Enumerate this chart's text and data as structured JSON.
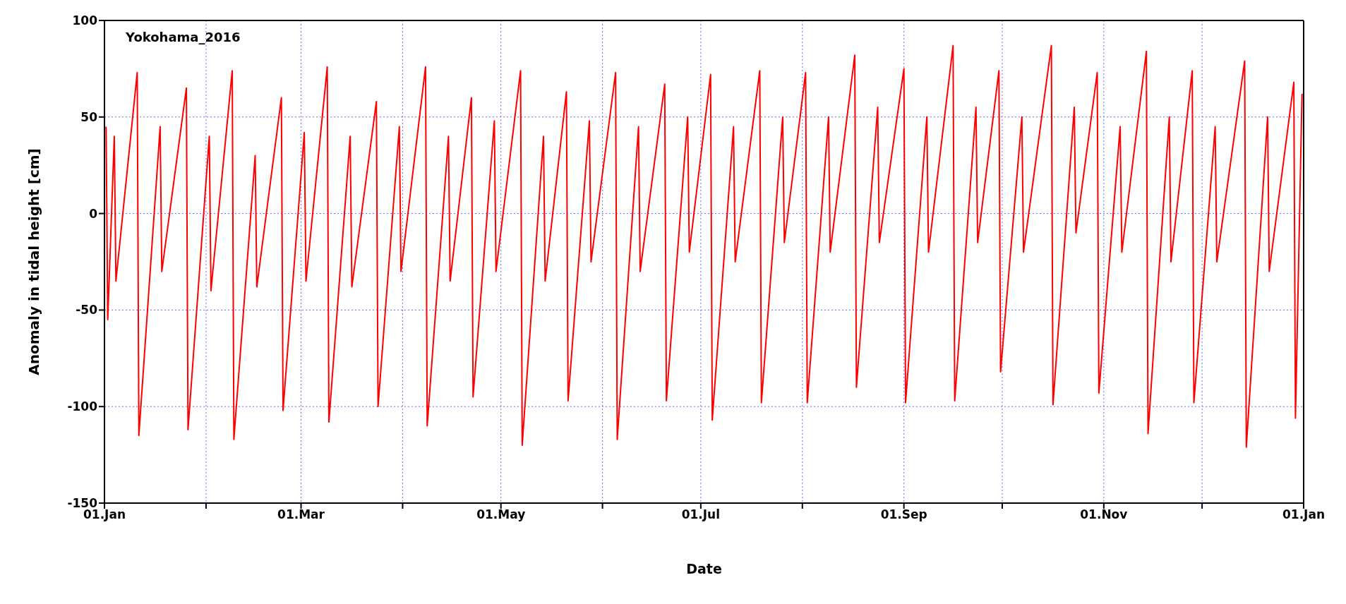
{
  "chart_data": {
    "type": "line",
    "title": "Yokohama_2016",
    "xlabel": "Date",
    "ylabel": "Anomaly in tidal height [cm]",
    "x": [
      "2016-01-01T12:00",
      "2016-01-02T00:00",
      "2016-01-04T00:00",
      "2016-01-04T12:00",
      "2016-01-11T00:00",
      "2016-01-11T12:00",
      "2016-01-18T00:00",
      "2016-01-18T12:00",
      "2016-01-26T00:00",
      "2016-01-26T12:00",
      "2016-02-02T00:00",
      "2016-02-02T12:00",
      "2016-02-09T00:00",
      "2016-02-09T12:00",
      "2016-02-16T00:00",
      "2016-02-16T12:00",
      "2016-02-24T00:00",
      "2016-02-24T12:00",
      "2016-03-02T00:00",
      "2016-03-02T12:00",
      "2016-03-09T00:00",
      "2016-03-09T12:00",
      "2016-03-16T00:00",
      "2016-03-16T12:00",
      "2016-03-24T00:00",
      "2016-03-24T12:00",
      "2016-03-31T00:00",
      "2016-03-31T12:00",
      "2016-04-08T00:00",
      "2016-04-08T12:00",
      "2016-04-15T00:00",
      "2016-04-15T12:00",
      "2016-04-22T00:00",
      "2016-04-22T12:00",
      "2016-04-29T00:00",
      "2016-04-29T12:00",
      "2016-05-07T00:00",
      "2016-05-07T12:00",
      "2016-05-14T00:00",
      "2016-05-14T12:00",
      "2016-05-21T00:00",
      "2016-05-21T12:00",
      "2016-05-28T00:00",
      "2016-05-28T12:00",
      "2016-06-05T00:00",
      "2016-06-05T12:00",
      "2016-06-12T00:00",
      "2016-06-12T12:00",
      "2016-06-20T00:00",
      "2016-06-20T12:00",
      "2016-06-27T00:00",
      "2016-06-27T12:00",
      "2016-07-04T00:00",
      "2016-07-04T12:00",
      "2016-07-11T00:00",
      "2016-07-11T12:00",
      "2016-07-19T00:00",
      "2016-07-19T12:00",
      "2016-07-26T00:00",
      "2016-07-26T12:00",
      "2016-08-02T00:00",
      "2016-08-02T12:00",
      "2016-08-09T00:00",
      "2016-08-09T12:00",
      "2016-08-17T00:00",
      "2016-08-17T12:00",
      "2016-08-24T00:00",
      "2016-08-24T12:00",
      "2016-09-01T00:00",
      "2016-09-01T12:00",
      "2016-09-08T00:00",
      "2016-09-08T12:00",
      "2016-09-16T00:00",
      "2016-09-16T12:00",
      "2016-09-23T00:00",
      "2016-09-23T12:00",
      "2016-09-30T00:00",
      "2016-09-30T12:00",
      "2016-10-07T00:00",
      "2016-10-07T12:00",
      "2016-10-16T00:00",
      "2016-10-16T12:00",
      "2016-10-23T00:00",
      "2016-10-23T12:00",
      "2016-10-30T00:00",
      "2016-10-30T12:00",
      "2016-11-06T00:00",
      "2016-11-06T12:00",
      "2016-11-14T00:00",
      "2016-11-14T12:00",
      "2016-11-21T00:00",
      "2016-11-21T12:00",
      "2016-11-28T00:00",
      "2016-11-28T12:00",
      "2016-12-05T00:00",
      "2016-12-05T12:00",
      "2016-12-14T00:00",
      "2016-12-14T12:00",
      "2016-12-21T00:00",
      "2016-12-21T12:00",
      "2016-12-29T00:00",
      "2016-12-29T12:00",
      "2016-12-31T12:00"
    ],
    "series": [
      {
        "color": "#ff0000",
        "values": [
          45,
          -55,
          40,
          -35,
          73,
          -115,
          45,
          -30,
          65,
          -112,
          40,
          -40,
          74,
          -117,
          30,
          -38,
          60,
          -102,
          42,
          -35,
          76,
          -108,
          40,
          -38,
          58,
          -100,
          45,
          -30,
          76,
          -110,
          40,
          -35,
          60,
          -95,
          48,
          -30,
          74,
          -120,
          40,
          -35,
          63,
          -97,
          48,
          -25,
          73,
          -117,
          45,
          -30,
          67,
          -97,
          50,
          -20,
          72,
          -107,
          45,
          -25,
          74,
          -98,
          50,
          -15,
          73,
          -98,
          50,
          -20,
          82,
          -90,
          55,
          -15,
          75,
          -98,
          50,
          -20,
          87,
          -97,
          55,
          -15,
          74,
          -82,
          50,
          -20,
          87,
          -99,
          55,
          -10,
          73,
          -93,
          45,
          -20,
          84,
          -114,
          50,
          -25,
          74,
          -98,
          45,
          -25,
          79,
          -121,
          50,
          -30,
          68,
          -106,
          62
        ]
      }
    ],
    "xlim": [
      "2016-01-01",
      "2017-01-01"
    ],
    "xticks": [
      {
        "value": "2016-01-01",
        "label": "01.Jan"
      },
      {
        "value": "2016-02-01",
        "label": null
      },
      {
        "value": "2016-03-01",
        "label": "01.Mar"
      },
      {
        "value": "2016-04-01",
        "label": null
      },
      {
        "value": "2016-05-01",
        "label": "01.May"
      },
      {
        "value": "2016-06-01",
        "label": null
      },
      {
        "value": "2016-07-01",
        "label": "01.Jul"
      },
      {
        "value": "2016-08-01",
        "label": null
      },
      {
        "value": "2016-09-01",
        "label": "01.Sep"
      },
      {
        "value": "2016-10-01",
        "label": null
      },
      {
        "value": "2016-11-01",
        "label": "01.Nov"
      },
      {
        "value": "2016-12-01",
        "label": null
      },
      {
        "value": "2017-01-01",
        "label": "01.Jan"
      }
    ],
    "ylim": [
      -150,
      100
    ],
    "yticks": [
      -150,
      -100,
      -50,
      0,
      50,
      100
    ],
    "grid": true,
    "marker": "none",
    "line_style": "solid",
    "legend": false
  }
}
